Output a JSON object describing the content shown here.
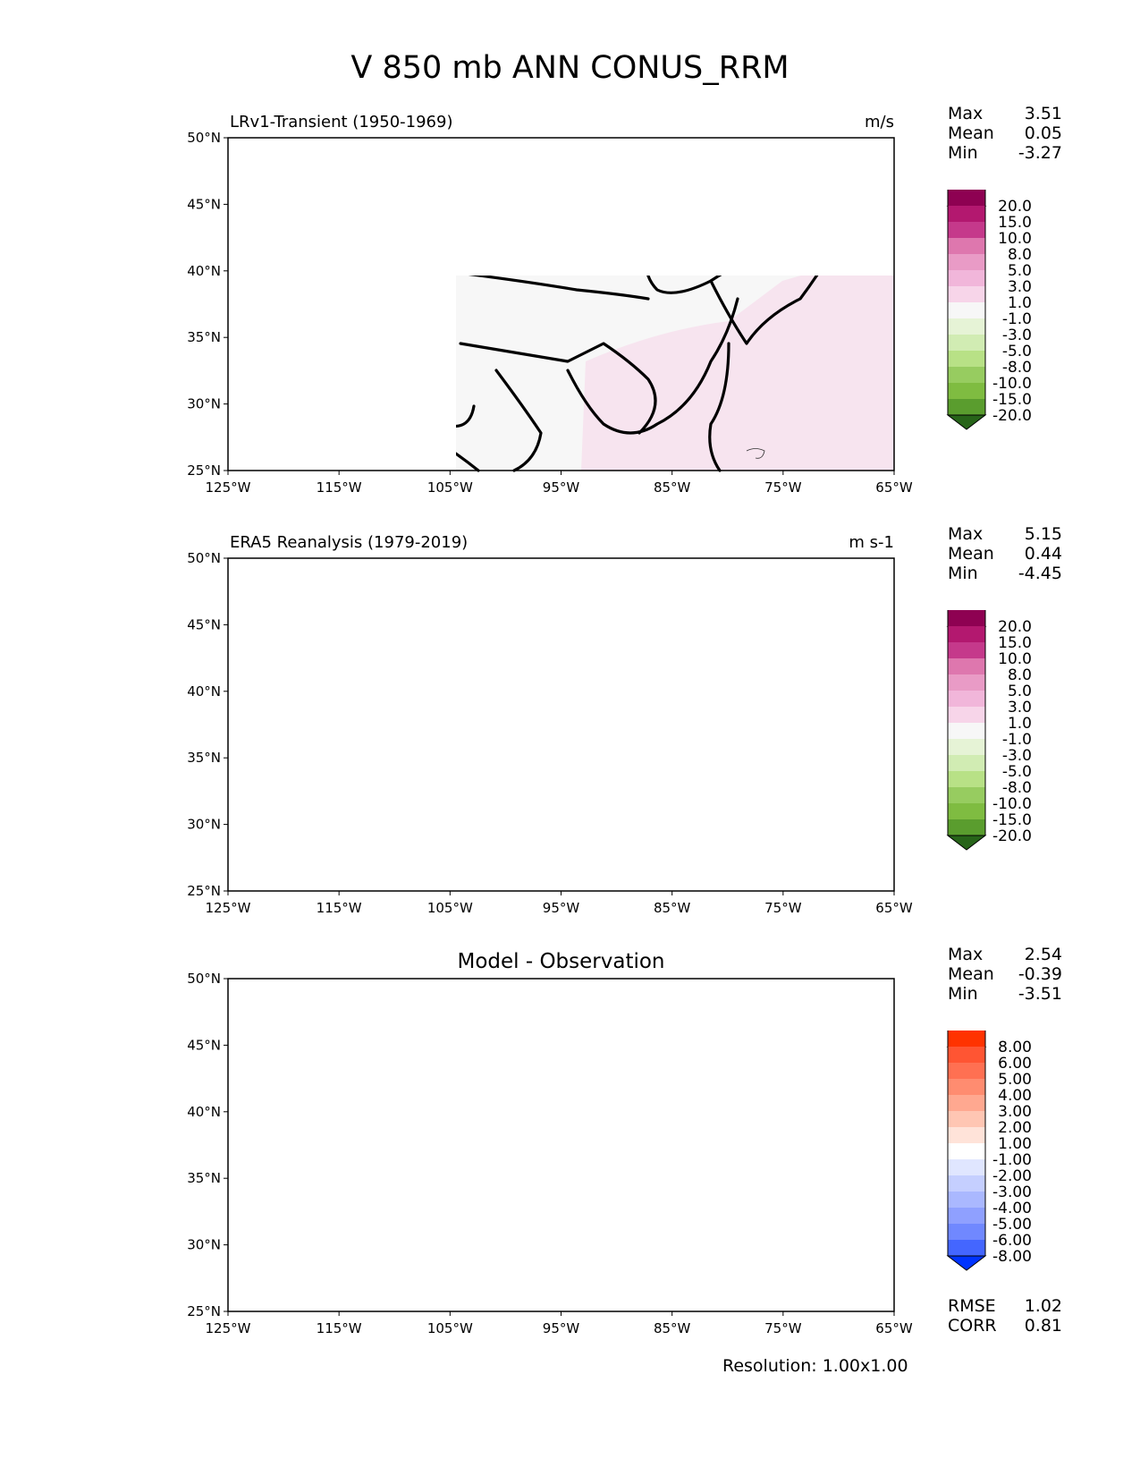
{
  "figure": {
    "title": "V 850 mb ANN CONUS_RRM",
    "resolution": "Resolution: 1.00x1.00"
  },
  "axes": {
    "lat_ticks": [
      "50°N",
      "45°N",
      "40°N",
      "35°N",
      "30°N",
      "25°N"
    ],
    "lon_ticks": [
      "125°W",
      "115°W",
      "105°W",
      "95°W",
      "85°W",
      "75°W",
      "65°W"
    ],
    "lat_range": [
      25,
      50
    ],
    "lon_range": [
      -125,
      -65
    ]
  },
  "panels": [
    {
      "left_title": "LRv1-Transient (1950-1969)",
      "right_title": "m/s",
      "center_title": "",
      "stats": {
        "labels": [
          "Max",
          "Mean",
          "Min"
        ],
        "values": [
          "3.51",
          "0.05",
          "-3.27"
        ]
      },
      "colorbar": {
        "levels": [
          "20.0",
          "15.0",
          "10.0",
          "8.0",
          "5.0",
          "3.0",
          "1.0",
          "-1.0",
          "-3.0",
          "-5.0",
          "-8.0",
          "-10.0",
          "-15.0",
          "-20.0"
        ],
        "colors": [
          "#8e0152",
          "#b3186f",
          "#c5398b",
          "#de77ae",
          "#e99bc6",
          "#f1b6da",
          "#f7d5e9",
          "#f7f7f7",
          "#e6f3d6",
          "#d1ecb3",
          "#b8e186",
          "#97cc60",
          "#7fbc41",
          "#5a9d2e",
          "#276419"
        ]
      }
    },
    {
      "left_title": "ERA5 Reanalysis (1979-2019)",
      "right_title": "m s-1",
      "center_title": "",
      "stats": {
        "labels": [
          "Max",
          "Mean",
          "Min"
        ],
        "values": [
          "5.15",
          "0.44",
          "-4.45"
        ]
      },
      "colorbar": {
        "levels": [
          "20.0",
          "15.0",
          "10.0",
          "8.0",
          "5.0",
          "3.0",
          "1.0",
          "-1.0",
          "-3.0",
          "-5.0",
          "-8.0",
          "-10.0",
          "-15.0",
          "-20.0"
        ],
        "colors": [
          "#8e0152",
          "#b3186f",
          "#c5398b",
          "#de77ae",
          "#e99bc6",
          "#f1b6da",
          "#f7d5e9",
          "#f7f7f7",
          "#e6f3d6",
          "#d1ecb3",
          "#b8e186",
          "#97cc60",
          "#7fbc41",
          "#5a9d2e",
          "#276419"
        ]
      }
    },
    {
      "left_title": "",
      "right_title": "",
      "center_title": "Model - Observation",
      "stats": {
        "labels": [
          "Max",
          "Mean",
          "Min"
        ],
        "values": [
          "2.54",
          "-0.39",
          "-3.51"
        ]
      },
      "colorbar": {
        "levels": [
          "8.00",
          "6.00",
          "5.00",
          "4.00",
          "3.00",
          "2.00",
          "1.00",
          "-1.00",
          "-2.00",
          "-3.00",
          "-4.00",
          "-5.00",
          "-6.00",
          "-8.00"
        ],
        "colors": [
          "#ff3300",
          "#ff5533",
          "#ff7052",
          "#ff8c70",
          "#ffa890",
          "#ffc6b3",
          "#ffe3d9",
          "#ffffff",
          "#e0e6ff",
          "#c5cfff",
          "#aab8ff",
          "#8fa0ff",
          "#7088ff",
          "#4466ff",
          "#0033ff"
        ]
      },
      "extra_stats": {
        "labels": [
          "RMSE",
          "CORR"
        ],
        "values": [
          "1.02",
          "0.81"
        ]
      }
    }
  ]
}
